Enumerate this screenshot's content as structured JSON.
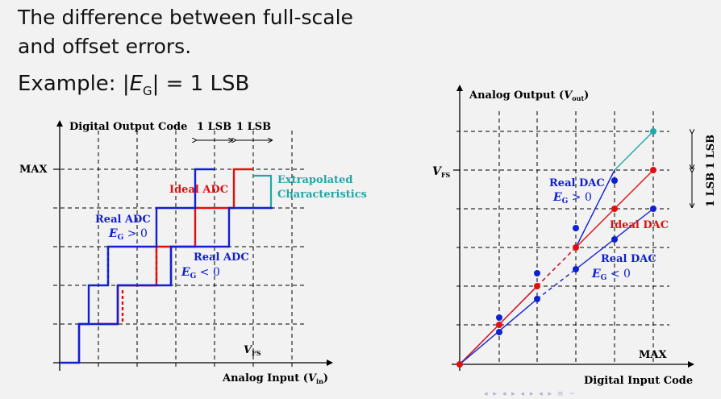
{
  "slide": {
    "title_line1": "The difference between full-scale",
    "title_line2": "and offset errors.",
    "example_prefix": "Example: |",
    "example_E": "E",
    "example_sub": "G",
    "example_suffix": "| = 1 LSB"
  },
  "adc": {
    "y_axis_title": "Digital Output Code",
    "x_axis_title_prefix": "Analog Input (",
    "x_axis_title_var": "V",
    "x_axis_title_sub": "in",
    "x_axis_title_suffix": ")",
    "max_label": "MAX",
    "vfs_label": "V",
    "vfs_sub": "FS",
    "lsb1": "1 LSB",
    "lsb2": "1 LSB",
    "ideal_label": "Ideal ADC",
    "extrap_line1": "Extrapolated",
    "extrap_line2": "Characteristics",
    "real_pos_line1": "Real ADC",
    "real_pos_eg": "E",
    "real_pos_sub": "G",
    "real_pos_cond": " > 0",
    "real_neg_line1": "Real ADC",
    "real_neg_eg": "E",
    "real_neg_sub": "G",
    "real_neg_cond": " < 0"
  },
  "dac": {
    "y_axis_title_prefix": "Analog Output (",
    "y_axis_title_var": "V",
    "y_axis_title_sub": "out",
    "y_axis_title_suffix": ")",
    "x_axis_title": "Digital Input Code",
    "max_label": "MAX",
    "vfs_label": "V",
    "vfs_sub": "FS",
    "lsb1": "1 LSB",
    "lsb2": "1 LSB",
    "ideal_label": "Ideal DAC",
    "real_pos_line1": "Real DAC",
    "real_pos_eg": "E",
    "real_pos_sub": "G",
    "real_pos_cond": " > 0",
    "real_neg_line1": "Real DAC",
    "real_neg_eg": "E",
    "real_neg_sub": "G",
    "real_neg_cond": " < 0"
  },
  "colors": {
    "ideal": "#e01010",
    "real": "#1020d0",
    "extrapolated": "#20a8a8",
    "axis": "#000000"
  },
  "nav_glyphs": "◂ ▸ ◂ ▸ ◂ ▸ ◂ ▸ ≡ ∽"
}
